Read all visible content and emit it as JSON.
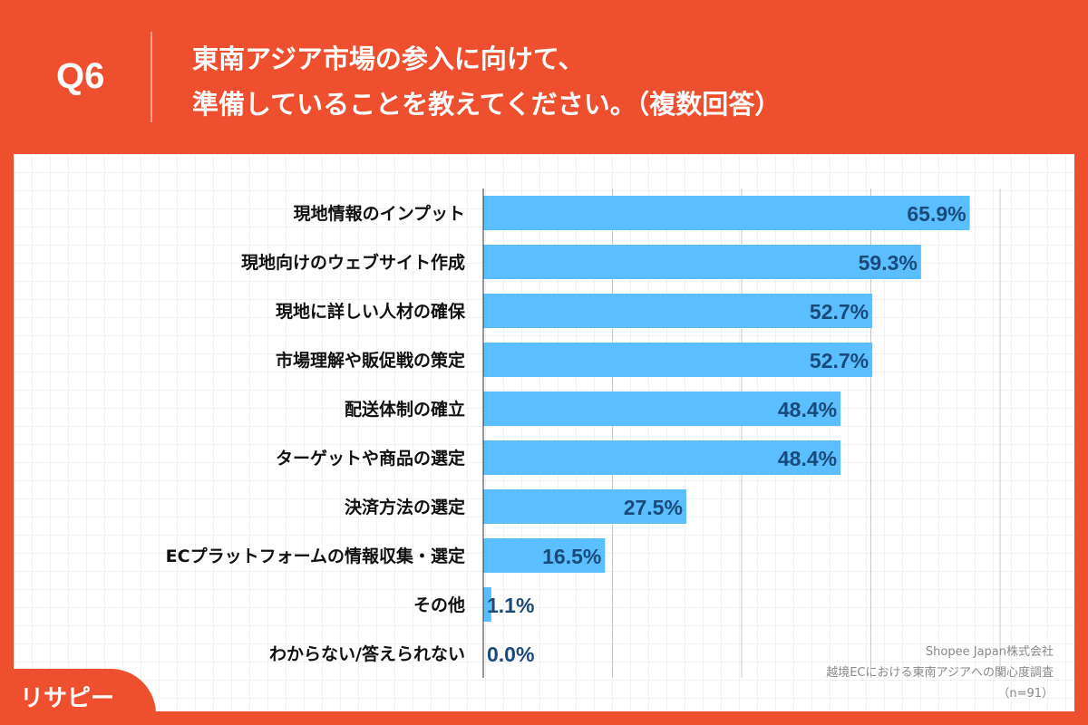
{
  "header": {
    "question_no": "Q6",
    "title_line1": "東南アジア市場の参入に向けて、",
    "title_line2": "準備していることを教えてください。（複数回答）"
  },
  "source": {
    "line1": "Shopee Japan株式会社",
    "line2": "越境ECにおける東南アジアへの関心度調査",
    "line3": "（n=91）"
  },
  "logo": {
    "text": "リサピー"
  },
  "colors": {
    "background": "#ee4f2e",
    "bar": "#5bbfff",
    "value_label": "#1a4a7a"
  },
  "chart_data": {
    "type": "bar",
    "orientation": "horizontal",
    "categories": [
      "現地情報のインプット",
      "現地向けのウェブサイト作成",
      "現地に詳しい人材の確保",
      "市場理解や販促戦の策定",
      "配送体制の確立",
      "ターゲットや商品の選定",
      "決済方法の選定",
      "ECプラットフォームの情報収集・選定",
      "その他",
      "わからない/答えられない"
    ],
    "values": [
      65.9,
      59.3,
      52.7,
      52.7,
      48.4,
      48.4,
      27.5,
      16.5,
      1.1,
      0.0
    ],
    "value_labels": [
      "65.9%",
      "59.3%",
      "52.7%",
      "52.7%",
      "48.4%",
      "48.4%",
      "27.5%",
      "16.5%",
      "1.1%",
      "0.0%"
    ],
    "xlim": [
      0,
      70
    ],
    "gridlines": [
      17.5,
      35,
      52.5,
      70
    ],
    "grid": true
  }
}
